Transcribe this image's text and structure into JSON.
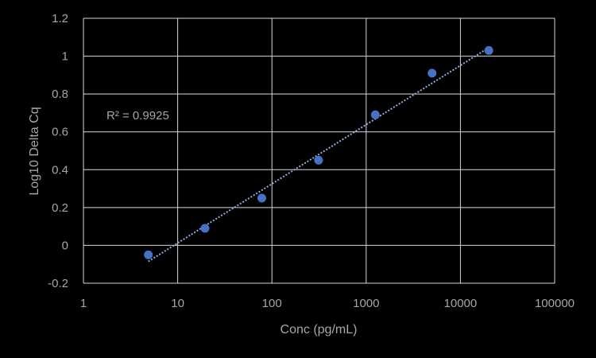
{
  "chart_data": {
    "type": "scatter",
    "title": "",
    "xlabel": "Conc (pg/mL)",
    "ylabel": "Log10 Delta Cq",
    "x_scale": "log",
    "xlim": [
      1,
      100000
    ],
    "ylim": [
      -0.2,
      1.2
    ],
    "x_ticks": [
      1,
      10,
      100,
      1000,
      10000,
      100000
    ],
    "x_tick_labels": [
      "1",
      "10",
      "100",
      "1000",
      "10000",
      "100000"
    ],
    "y_ticks": [
      -0.2,
      0,
      0.2,
      0.4,
      0.6,
      0.8,
      1,
      1.2
    ],
    "y_tick_labels": [
      "-0.2",
      "0",
      "0.2",
      "0.4",
      "0.6",
      "0.8",
      "1",
      "1.2"
    ],
    "grid": true,
    "series": [
      {
        "name": "Log10 Delta Cq",
        "color": "#4472c4",
        "x": [
          4.88,
          19.5,
          78.1,
          312.5,
          1250,
          5000,
          20000
        ],
        "y": [
          -0.05,
          0.09,
          0.25,
          0.45,
          0.69,
          0.91,
          1.03
        ]
      }
    ],
    "trendline": {
      "type": "logarithmic",
      "color": "#8faadc",
      "style": "dotted",
      "x": [
        4.88,
        20000
      ],
      "y": [
        -0.085,
        1.045
      ]
    },
    "annotation": {
      "text": "R² = 0.9925"
    },
    "colors": {
      "background": "#000000",
      "grid": "#d9d9d9",
      "text": "#a6a6a6"
    }
  }
}
